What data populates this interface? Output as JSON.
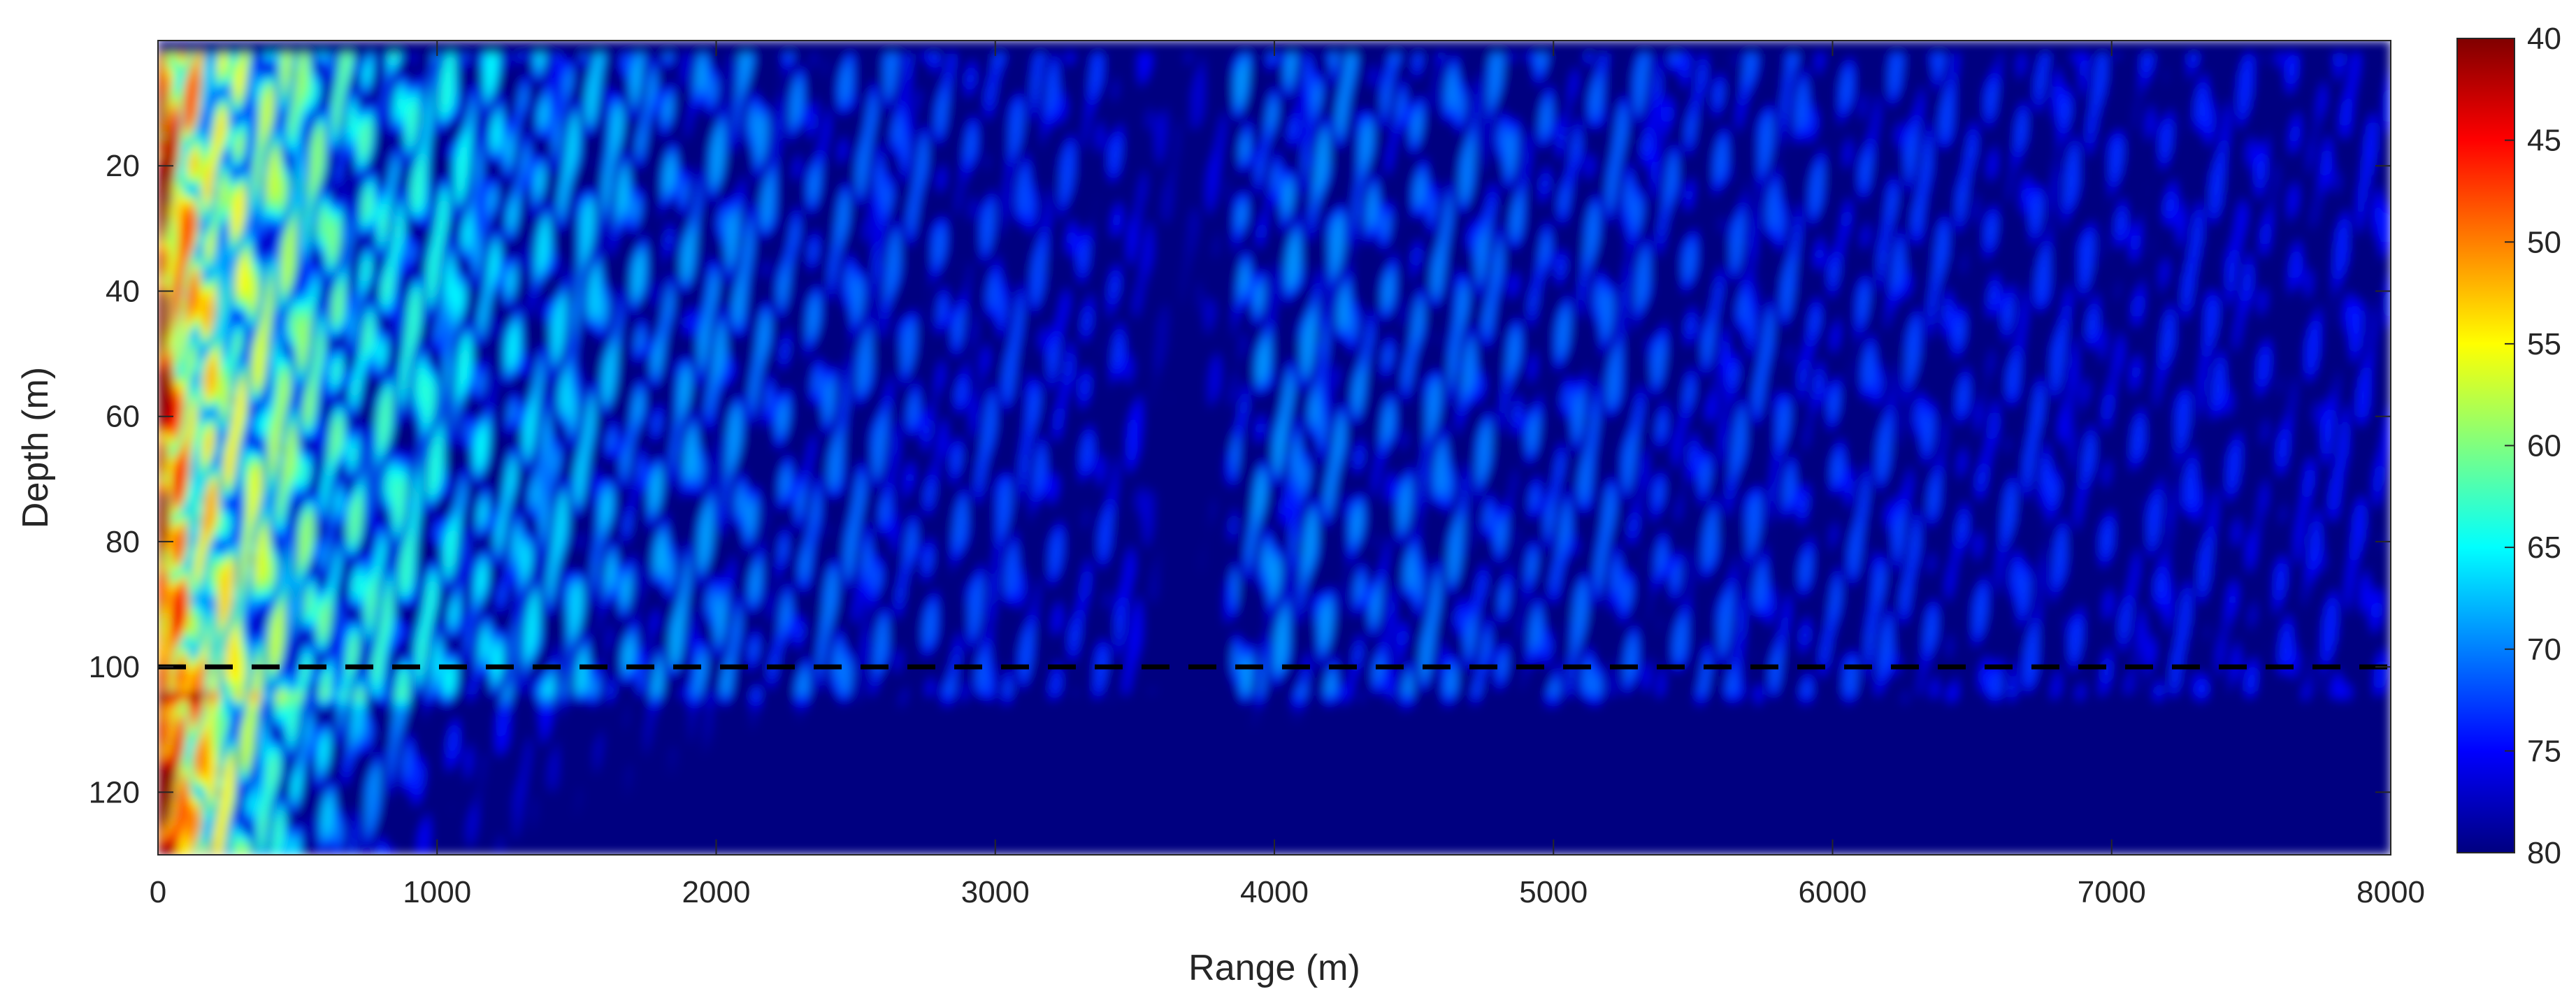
{
  "chart_data": {
    "type": "heatmap",
    "title": "",
    "xlabel": "Range (m)",
    "ylabel": "Depth (m)",
    "xlim": [
      0,
      8000
    ],
    "ylim": [
      0,
      130
    ],
    "y_reversed": true,
    "x_ticks": [
      0,
      1000,
      2000,
      3000,
      4000,
      5000,
      6000,
      7000,
      8000
    ],
    "y_ticks": [
      20,
      40,
      60,
      80,
      100,
      120
    ],
    "colorbar": {
      "colormap": "jet",
      "reversed": true,
      "range": [
        40,
        80
      ],
      "ticks": [
        40,
        45,
        50,
        55,
        60,
        65,
        70,
        75,
        80
      ]
    },
    "reference_line": {
      "y": 100,
      "style": "dashed",
      "color": "#000000"
    },
    "surface_band_depth": 2,
    "seafloor_depth": 104,
    "grid": false
  }
}
